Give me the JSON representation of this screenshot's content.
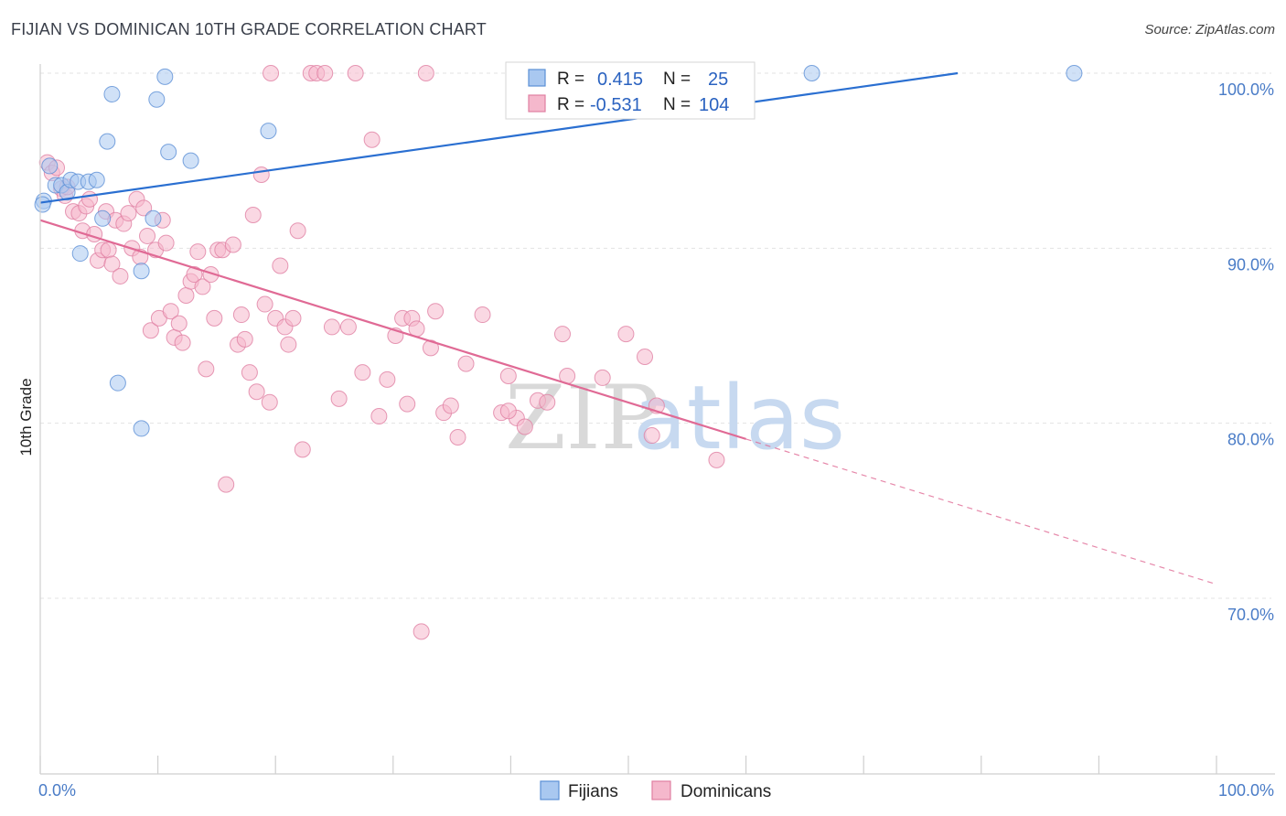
{
  "header": {
    "title": "FIJIAN VS DOMINICAN 10TH GRADE CORRELATION CHART",
    "source": "Source: ZipAtlas.com"
  },
  "watermark": {
    "part1": "ZIP",
    "part2": "atlas"
  },
  "legend": {
    "r_label": "R =",
    "n_label": "N =",
    "fijians": {
      "r": "0.415",
      "n": "25"
    },
    "dominicans": {
      "r": "-0.531",
      "n": "104"
    }
  },
  "bottom_legend": {
    "fijians": "Fijians",
    "dominicans": "Dominicans"
  },
  "colors": {
    "fijians_fill": "#a9c8f0",
    "fijians_stroke": "#5b8fd6",
    "fijians_line": "#2a6fd1",
    "dominicans_fill": "#f5b8cc",
    "dominicans_stroke": "#e07fa2",
    "dominicans_line": "#e06a95",
    "tick_text": "#4a7cc7",
    "grid": "#e3e3e3"
  },
  "chart_data": {
    "type": "scatter",
    "title": "FIJIAN VS DOMINICAN 10TH GRADE CORRELATION CHART",
    "xlabel": "",
    "ylabel": "10th Grade",
    "xlim": [
      0,
      100
    ],
    "ylim": [
      60.5,
      101
    ],
    "y_ticks": [
      {
        "value": 100,
        "label": "100.0%"
      },
      {
        "value": 90,
        "label": "90.0%"
      },
      {
        "value": 80,
        "label": "80.0%"
      },
      {
        "value": 70,
        "label": "70.0%"
      }
    ],
    "x_tick_labels": [
      {
        "value": 0,
        "label": "0.0%"
      },
      {
        "value": 100,
        "label": "100.0%"
      }
    ],
    "x_minor_ticks": [
      0,
      10,
      20,
      30,
      40,
      50,
      60,
      70,
      80,
      90,
      100
    ],
    "grid": true,
    "legend_position": "top-center",
    "series": [
      {
        "name": "Fijians",
        "points": [
          [
            0.3,
            92.7
          ],
          [
            0.8,
            94.7
          ],
          [
            1.3,
            93.6
          ],
          [
            1.8,
            93.6
          ],
          [
            2.3,
            93.2
          ],
          [
            2.6,
            93.9
          ],
          [
            3.2,
            93.8
          ],
          [
            3.4,
            89.7
          ],
          [
            4.1,
            93.8
          ],
          [
            4.8,
            93.9
          ],
          [
            5.3,
            91.7
          ],
          [
            5.7,
            96.1
          ],
          [
            6.1,
            98.8
          ],
          [
            6.6,
            82.3
          ],
          [
            8.6,
            88.7
          ],
          [
            8.6,
            79.7
          ],
          [
            9.6,
            91.7
          ],
          [
            9.9,
            98.5
          ],
          [
            10.6,
            99.8
          ],
          [
            10.9,
            95.5
          ],
          [
            12.8,
            95.0
          ],
          [
            19.4,
            96.7
          ],
          [
            65.6,
            100.0
          ],
          [
            87.9,
            100.0
          ],
          [
            0.2,
            92.5
          ]
        ],
        "trend": {
          "x": [
            0,
            78
          ],
          "y": [
            92.6,
            100.0
          ]
        }
      },
      {
        "name": "Dominicans",
        "points": [
          [
            0.6,
            94.9
          ],
          [
            1.0,
            94.3
          ],
          [
            1.4,
            94.6
          ],
          [
            1.8,
            93.4
          ],
          [
            2.1,
            93.0
          ],
          [
            2.3,
            93.5
          ],
          [
            2.8,
            92.1
          ],
          [
            3.3,
            92.0
          ],
          [
            3.6,
            91.0
          ],
          [
            3.9,
            92.4
          ],
          [
            4.2,
            92.8
          ],
          [
            4.6,
            90.8
          ],
          [
            4.9,
            89.3
          ],
          [
            5.3,
            89.9
          ],
          [
            5.6,
            92.1
          ],
          [
            5.8,
            89.9
          ],
          [
            6.1,
            89.1
          ],
          [
            6.4,
            91.6
          ],
          [
            6.8,
            88.4
          ],
          [
            7.1,
            91.4
          ],
          [
            7.5,
            92.0
          ],
          [
            7.8,
            90.0
          ],
          [
            8.2,
            92.8
          ],
          [
            8.5,
            89.5
          ],
          [
            8.8,
            92.3
          ],
          [
            9.1,
            90.7
          ],
          [
            9.4,
            85.3
          ],
          [
            9.8,
            89.9
          ],
          [
            10.1,
            86.0
          ],
          [
            10.4,
            91.6
          ],
          [
            10.7,
            90.3
          ],
          [
            11.1,
            86.4
          ],
          [
            11.4,
            84.9
          ],
          [
            11.8,
            85.7
          ],
          [
            12.1,
            84.6
          ],
          [
            12.4,
            87.3
          ],
          [
            12.8,
            88.1
          ],
          [
            13.1,
            88.5
          ],
          [
            13.4,
            89.8
          ],
          [
            13.8,
            87.8
          ],
          [
            14.1,
            83.1
          ],
          [
            14.5,
            88.5
          ],
          [
            14.8,
            86.0
          ],
          [
            15.1,
            89.9
          ],
          [
            15.5,
            89.9
          ],
          [
            15.8,
            76.5
          ],
          [
            16.4,
            90.2
          ],
          [
            16.8,
            84.5
          ],
          [
            17.1,
            86.2
          ],
          [
            17.4,
            84.8
          ],
          [
            17.8,
            82.9
          ],
          [
            18.1,
            91.9
          ],
          [
            18.4,
            81.8
          ],
          [
            18.8,
            94.2
          ],
          [
            19.1,
            86.8
          ],
          [
            19.5,
            81.2
          ],
          [
            20.0,
            86.0
          ],
          [
            20.4,
            89.0
          ],
          [
            20.8,
            85.5
          ],
          [
            21.1,
            84.5
          ],
          [
            21.5,
            86.0
          ],
          [
            21.9,
            91.0
          ],
          [
            22.3,
            78.5
          ],
          [
            23.0,
            100.0
          ],
          [
            23.5,
            100.0
          ],
          [
            24.2,
            100.0
          ],
          [
            24.8,
            85.5
          ],
          [
            25.4,
            81.4
          ],
          [
            26.2,
            85.5
          ],
          [
            26.8,
            100.0
          ],
          [
            27.4,
            82.9
          ],
          [
            28.2,
            96.2
          ],
          [
            28.8,
            80.4
          ],
          [
            29.5,
            82.5
          ],
          [
            30.2,
            85.0
          ],
          [
            30.8,
            86.0
          ],
          [
            31.2,
            81.1
          ],
          [
            31.6,
            86.0
          ],
          [
            32.0,
            85.4
          ],
          [
            32.4,
            68.1
          ],
          [
            32.8,
            100.0
          ],
          [
            33.2,
            84.3
          ],
          [
            33.6,
            86.4
          ],
          [
            34.3,
            80.6
          ],
          [
            34.9,
            81.0
          ],
          [
            35.5,
            79.2
          ],
          [
            36.2,
            83.4
          ],
          [
            37.6,
            86.2
          ],
          [
            39.2,
            80.6
          ],
          [
            39.8,
            82.7
          ],
          [
            40.5,
            80.3
          ],
          [
            41.2,
            79.8
          ],
          [
            42.3,
            81.3
          ],
          [
            43.1,
            81.2
          ],
          [
            44.4,
            85.1
          ],
          [
            44.8,
            82.7
          ],
          [
            47.8,
            82.6
          ],
          [
            49.8,
            85.1
          ],
          [
            51.4,
            83.8
          ],
          [
            52.0,
            79.3
          ],
          [
            52.4,
            81.0
          ],
          [
            57.5,
            77.9
          ],
          [
            39.8,
            80.7
          ],
          [
            19.6,
            100.0
          ]
        ],
        "trend": {
          "x": [
            0,
            60
          ],
          "y": [
            91.6,
            79.1
          ]
        },
        "trend_extended": {
          "x": [
            60,
            100
          ],
          "y": [
            79.1,
            70.8
          ]
        }
      }
    ]
  }
}
